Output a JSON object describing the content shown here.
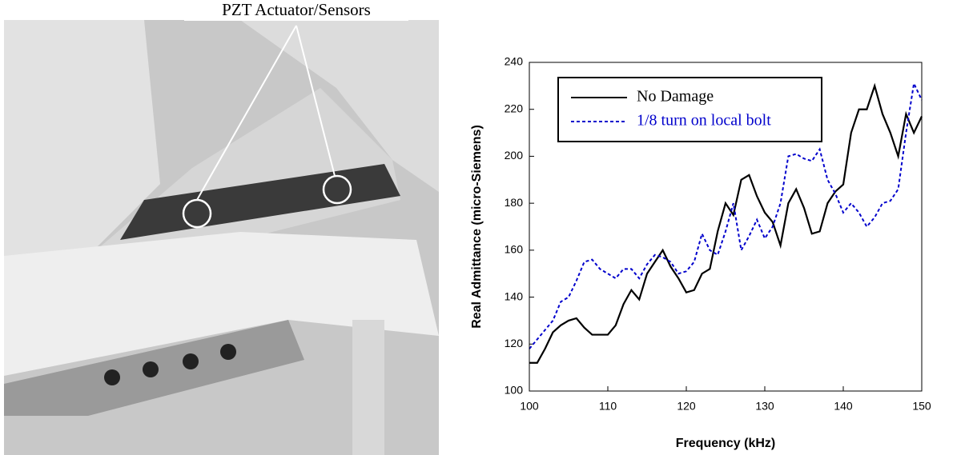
{
  "photo": {
    "annotation": "PZT Actuator/Sensors"
  },
  "chart_data": {
    "type": "line",
    "x_label": "Frequency (kHz)",
    "y_label": "Real Admittance  (micro-Siemens)",
    "x": [
      100,
      101,
      102,
      103,
      104,
      105,
      106,
      107,
      108,
      109,
      110,
      111,
      112,
      113,
      114,
      115,
      116,
      117,
      118,
      119,
      120,
      121,
      122,
      123,
      124,
      125,
      126,
      127,
      128,
      129,
      130,
      131,
      132,
      133,
      134,
      135,
      136,
      137,
      138,
      139,
      140,
      141,
      142,
      143,
      144,
      145,
      146,
      147,
      148,
      149,
      150
    ],
    "series": [
      {
        "name": "No Damage",
        "color": "#000000",
        "dash": false,
        "values": [
          112,
          112,
          118,
          125,
          128,
          130,
          131,
          127,
          124,
          124,
          124,
          128,
          137,
          143,
          139,
          150,
          155,
          160,
          153,
          148,
          142,
          143,
          150,
          152,
          168,
          180,
          175,
          190,
          192,
          183,
          176,
          172,
          162,
          180,
          186,
          178,
          167,
          168,
          180,
          185,
          188,
          210,
          220,
          220,
          230,
          218,
          210,
          200,
          218,
          210,
          217
        ]
      },
      {
        "name": "1/8 turn on local bolt",
        "color": "#0000cc",
        "dash": true,
        "values": [
          118,
          122,
          126,
          130,
          138,
          140,
          147,
          155,
          156,
          152,
          150,
          148,
          152,
          152,
          148,
          154,
          158,
          157,
          155,
          150,
          151,
          155,
          167,
          160,
          158,
          168,
          180,
          160,
          166,
          173,
          165,
          170,
          180,
          200,
          201,
          199,
          198,
          203,
          190,
          184,
          176,
          180,
          176,
          170,
          174,
          180,
          181,
          186,
          210,
          231,
          224
        ]
      }
    ],
    "xlim": [
      100,
      150
    ],
    "xticks": [
      100,
      110,
      120,
      130,
      140,
      150
    ],
    "ylim": [
      100,
      240
    ],
    "yticks": [
      100,
      120,
      140,
      160,
      180,
      200,
      220,
      240
    ],
    "legend": "upper left"
  }
}
